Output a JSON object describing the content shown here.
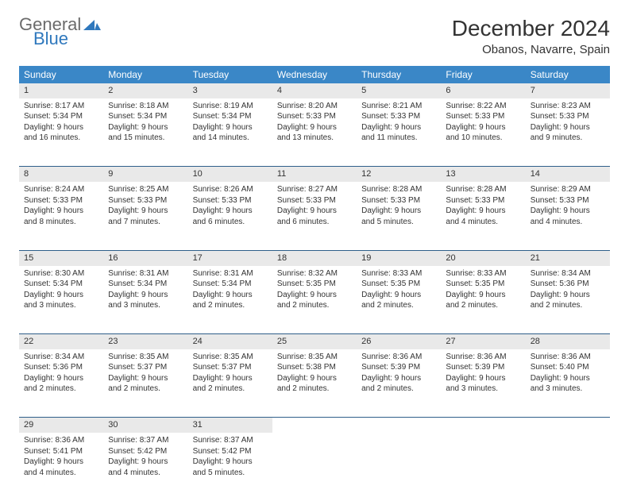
{
  "brand": {
    "word1": "General",
    "word2": "Blue",
    "tri_color": "#2f78bd"
  },
  "title": "December 2024",
  "location": "Obanos, Navarre, Spain",
  "header_bg": "#3a87c7",
  "daynum_bg": "#e9e9e9",
  "border_color": "#2f5f8a",
  "day_names": [
    "Sunday",
    "Monday",
    "Tuesday",
    "Wednesday",
    "Thursday",
    "Friday",
    "Saturday"
  ],
  "weeks": [
    [
      {
        "n": "1",
        "sr": "Sunrise: 8:17 AM",
        "ss": "Sunset: 5:34 PM",
        "d1": "Daylight: 9 hours",
        "d2": "and 16 minutes."
      },
      {
        "n": "2",
        "sr": "Sunrise: 8:18 AM",
        "ss": "Sunset: 5:34 PM",
        "d1": "Daylight: 9 hours",
        "d2": "and 15 minutes."
      },
      {
        "n": "3",
        "sr": "Sunrise: 8:19 AM",
        "ss": "Sunset: 5:34 PM",
        "d1": "Daylight: 9 hours",
        "d2": "and 14 minutes."
      },
      {
        "n": "4",
        "sr": "Sunrise: 8:20 AM",
        "ss": "Sunset: 5:33 PM",
        "d1": "Daylight: 9 hours",
        "d2": "and 13 minutes."
      },
      {
        "n": "5",
        "sr": "Sunrise: 8:21 AM",
        "ss": "Sunset: 5:33 PM",
        "d1": "Daylight: 9 hours",
        "d2": "and 11 minutes."
      },
      {
        "n": "6",
        "sr": "Sunrise: 8:22 AM",
        "ss": "Sunset: 5:33 PM",
        "d1": "Daylight: 9 hours",
        "d2": "and 10 minutes."
      },
      {
        "n": "7",
        "sr": "Sunrise: 8:23 AM",
        "ss": "Sunset: 5:33 PM",
        "d1": "Daylight: 9 hours",
        "d2": "and 9 minutes."
      }
    ],
    [
      {
        "n": "8",
        "sr": "Sunrise: 8:24 AM",
        "ss": "Sunset: 5:33 PM",
        "d1": "Daylight: 9 hours",
        "d2": "and 8 minutes."
      },
      {
        "n": "9",
        "sr": "Sunrise: 8:25 AM",
        "ss": "Sunset: 5:33 PM",
        "d1": "Daylight: 9 hours",
        "d2": "and 7 minutes."
      },
      {
        "n": "10",
        "sr": "Sunrise: 8:26 AM",
        "ss": "Sunset: 5:33 PM",
        "d1": "Daylight: 9 hours",
        "d2": "and 6 minutes."
      },
      {
        "n": "11",
        "sr": "Sunrise: 8:27 AM",
        "ss": "Sunset: 5:33 PM",
        "d1": "Daylight: 9 hours",
        "d2": "and 6 minutes."
      },
      {
        "n": "12",
        "sr": "Sunrise: 8:28 AM",
        "ss": "Sunset: 5:33 PM",
        "d1": "Daylight: 9 hours",
        "d2": "and 5 minutes."
      },
      {
        "n": "13",
        "sr": "Sunrise: 8:28 AM",
        "ss": "Sunset: 5:33 PM",
        "d1": "Daylight: 9 hours",
        "d2": "and 4 minutes."
      },
      {
        "n": "14",
        "sr": "Sunrise: 8:29 AM",
        "ss": "Sunset: 5:33 PM",
        "d1": "Daylight: 9 hours",
        "d2": "and 4 minutes."
      }
    ],
    [
      {
        "n": "15",
        "sr": "Sunrise: 8:30 AM",
        "ss": "Sunset: 5:34 PM",
        "d1": "Daylight: 9 hours",
        "d2": "and 3 minutes."
      },
      {
        "n": "16",
        "sr": "Sunrise: 8:31 AM",
        "ss": "Sunset: 5:34 PM",
        "d1": "Daylight: 9 hours",
        "d2": "and 3 minutes."
      },
      {
        "n": "17",
        "sr": "Sunrise: 8:31 AM",
        "ss": "Sunset: 5:34 PM",
        "d1": "Daylight: 9 hours",
        "d2": "and 2 minutes."
      },
      {
        "n": "18",
        "sr": "Sunrise: 8:32 AM",
        "ss": "Sunset: 5:35 PM",
        "d1": "Daylight: 9 hours",
        "d2": "and 2 minutes."
      },
      {
        "n": "19",
        "sr": "Sunrise: 8:33 AM",
        "ss": "Sunset: 5:35 PM",
        "d1": "Daylight: 9 hours",
        "d2": "and 2 minutes."
      },
      {
        "n": "20",
        "sr": "Sunrise: 8:33 AM",
        "ss": "Sunset: 5:35 PM",
        "d1": "Daylight: 9 hours",
        "d2": "and 2 minutes."
      },
      {
        "n": "21",
        "sr": "Sunrise: 8:34 AM",
        "ss": "Sunset: 5:36 PM",
        "d1": "Daylight: 9 hours",
        "d2": "and 2 minutes."
      }
    ],
    [
      {
        "n": "22",
        "sr": "Sunrise: 8:34 AM",
        "ss": "Sunset: 5:36 PM",
        "d1": "Daylight: 9 hours",
        "d2": "and 2 minutes."
      },
      {
        "n": "23",
        "sr": "Sunrise: 8:35 AM",
        "ss": "Sunset: 5:37 PM",
        "d1": "Daylight: 9 hours",
        "d2": "and 2 minutes."
      },
      {
        "n": "24",
        "sr": "Sunrise: 8:35 AM",
        "ss": "Sunset: 5:37 PM",
        "d1": "Daylight: 9 hours",
        "d2": "and 2 minutes."
      },
      {
        "n": "25",
        "sr": "Sunrise: 8:35 AM",
        "ss": "Sunset: 5:38 PM",
        "d1": "Daylight: 9 hours",
        "d2": "and 2 minutes."
      },
      {
        "n": "26",
        "sr": "Sunrise: 8:36 AM",
        "ss": "Sunset: 5:39 PM",
        "d1": "Daylight: 9 hours",
        "d2": "and 2 minutes."
      },
      {
        "n": "27",
        "sr": "Sunrise: 8:36 AM",
        "ss": "Sunset: 5:39 PM",
        "d1": "Daylight: 9 hours",
        "d2": "and 3 minutes."
      },
      {
        "n": "28",
        "sr": "Sunrise: 8:36 AM",
        "ss": "Sunset: 5:40 PM",
        "d1": "Daylight: 9 hours",
        "d2": "and 3 minutes."
      }
    ],
    [
      {
        "n": "29",
        "sr": "Sunrise: 8:36 AM",
        "ss": "Sunset: 5:41 PM",
        "d1": "Daylight: 9 hours",
        "d2": "and 4 minutes."
      },
      {
        "n": "30",
        "sr": "Sunrise: 8:37 AM",
        "ss": "Sunset: 5:42 PM",
        "d1": "Daylight: 9 hours",
        "d2": "and 4 minutes."
      },
      {
        "n": "31",
        "sr": "Sunrise: 8:37 AM",
        "ss": "Sunset: 5:42 PM",
        "d1": "Daylight: 9 hours",
        "d2": "and 5 minutes."
      },
      null,
      null,
      null,
      null
    ]
  ]
}
